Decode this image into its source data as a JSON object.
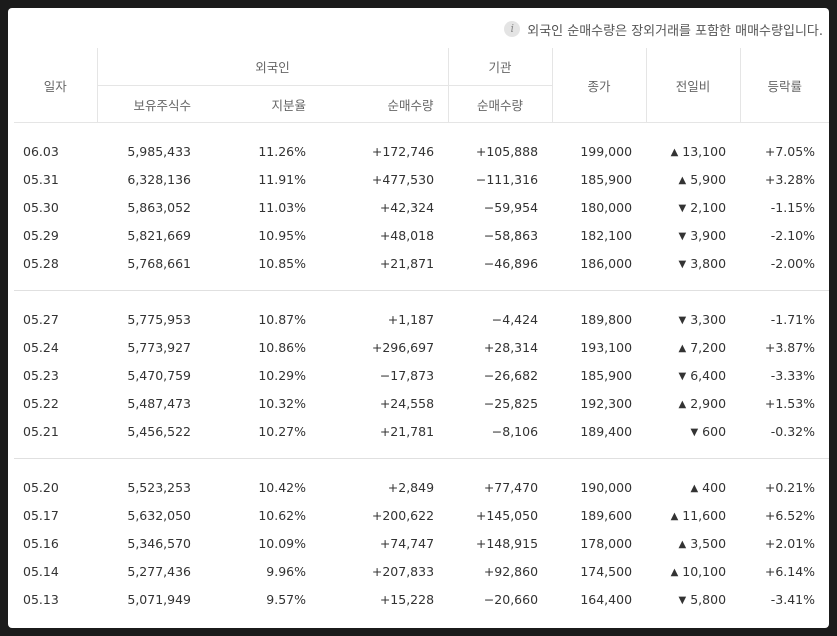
{
  "notice": "외국인 순매수량은 장외거래를 포함한 매매수량입니다.",
  "headers": {
    "date": "일자",
    "foreigner": "외국인",
    "institution": "기관",
    "close": "종가",
    "change": "전일비",
    "rate": "등락률",
    "holdings": "보유주식수",
    "share": "지분율",
    "net_foreign": "순매수량",
    "net_inst": "순매수량"
  },
  "colors": {
    "up": "#e12929",
    "down": "#2a5ebf"
  },
  "groups": [
    {
      "rows": [
        {
          "date": "06.03",
          "holdings": "5,985,433",
          "share": "11.26%",
          "net_foreign": "+172,746",
          "net_inst": "+105,888",
          "close": "199,000",
          "dir": "up",
          "change": "13,100",
          "rate": "+7.05%"
        },
        {
          "date": "05.31",
          "holdings": "6,328,136",
          "share": "11.91%",
          "net_foreign": "+477,530",
          "net_inst": "−111,316",
          "close": "185,900",
          "dir": "up",
          "change": "5,900",
          "rate": "+3.28%"
        },
        {
          "date": "05.30",
          "holdings": "5,863,052",
          "share": "11.03%",
          "net_foreign": "+42,324",
          "net_inst": "−59,954",
          "close": "180,000",
          "dir": "down",
          "change": "2,100",
          "rate": "-1.15%"
        },
        {
          "date": "05.29",
          "holdings": "5,821,669",
          "share": "10.95%",
          "net_foreign": "+48,018",
          "net_inst": "−58,863",
          "close": "182,100",
          "dir": "down",
          "change": "3,900",
          "rate": "-2.10%"
        },
        {
          "date": "05.28",
          "holdings": "5,768,661",
          "share": "10.85%",
          "net_foreign": "+21,871",
          "net_inst": "−46,896",
          "close": "186,000",
          "dir": "down",
          "change": "3,800",
          "rate": "-2.00%"
        }
      ]
    },
    {
      "rows": [
        {
          "date": "05.27",
          "holdings": "5,775,953",
          "share": "10.87%",
          "net_foreign": "+1,187",
          "net_inst": "−4,424",
          "close": "189,800",
          "dir": "down",
          "change": "3,300",
          "rate": "-1.71%"
        },
        {
          "date": "05.24",
          "holdings": "5,773,927",
          "share": "10.86%",
          "net_foreign": "+296,697",
          "net_inst": "+28,314",
          "close": "193,100",
          "dir": "up",
          "change": "7,200",
          "rate": "+3.87%"
        },
        {
          "date": "05.23",
          "holdings": "5,470,759",
          "share": "10.29%",
          "net_foreign": "−17,873",
          "net_inst": "−26,682",
          "close": "185,900",
          "dir": "down",
          "change": "6,400",
          "rate": "-3.33%"
        },
        {
          "date": "05.22",
          "holdings": "5,487,473",
          "share": "10.32%",
          "net_foreign": "+24,558",
          "net_inst": "−25,825",
          "close": "192,300",
          "dir": "up",
          "change": "2,900",
          "rate": "+1.53%"
        },
        {
          "date": "05.21",
          "holdings": "5,456,522",
          "share": "10.27%",
          "net_foreign": "+21,781",
          "net_inst": "−8,106",
          "close": "189,400",
          "dir": "down",
          "change": "600",
          "rate": "-0.32%"
        }
      ]
    },
    {
      "rows": [
        {
          "date": "05.20",
          "holdings": "5,523,253",
          "share": "10.42%",
          "net_foreign": "+2,849",
          "net_inst": "+77,470",
          "close": "190,000",
          "dir": "up",
          "change": "400",
          "rate": "+0.21%"
        },
        {
          "date": "05.17",
          "holdings": "5,632,050",
          "share": "10.62%",
          "net_foreign": "+200,622",
          "net_inst": "+145,050",
          "close": "189,600",
          "dir": "up",
          "change": "11,600",
          "rate": "+6.52%"
        },
        {
          "date": "05.16",
          "holdings": "5,346,570",
          "share": "10.09%",
          "net_foreign": "+74,747",
          "net_inst": "+148,915",
          "close": "178,000",
          "dir": "up",
          "change": "3,500",
          "rate": "+2.01%"
        },
        {
          "date": "05.14",
          "holdings": "5,277,436",
          "share": "9.96%",
          "net_foreign": "+207,833",
          "net_inst": "+92,860",
          "close": "174,500",
          "dir": "up",
          "change": "10,100",
          "rate": "+6.14%"
        },
        {
          "date": "05.13",
          "holdings": "5,071,949",
          "share": "9.57%",
          "net_foreign": "+15,228",
          "net_inst": "−20,660",
          "close": "164,400",
          "dir": "down",
          "change": "5,800",
          "rate": "-3.41%"
        }
      ]
    }
  ]
}
